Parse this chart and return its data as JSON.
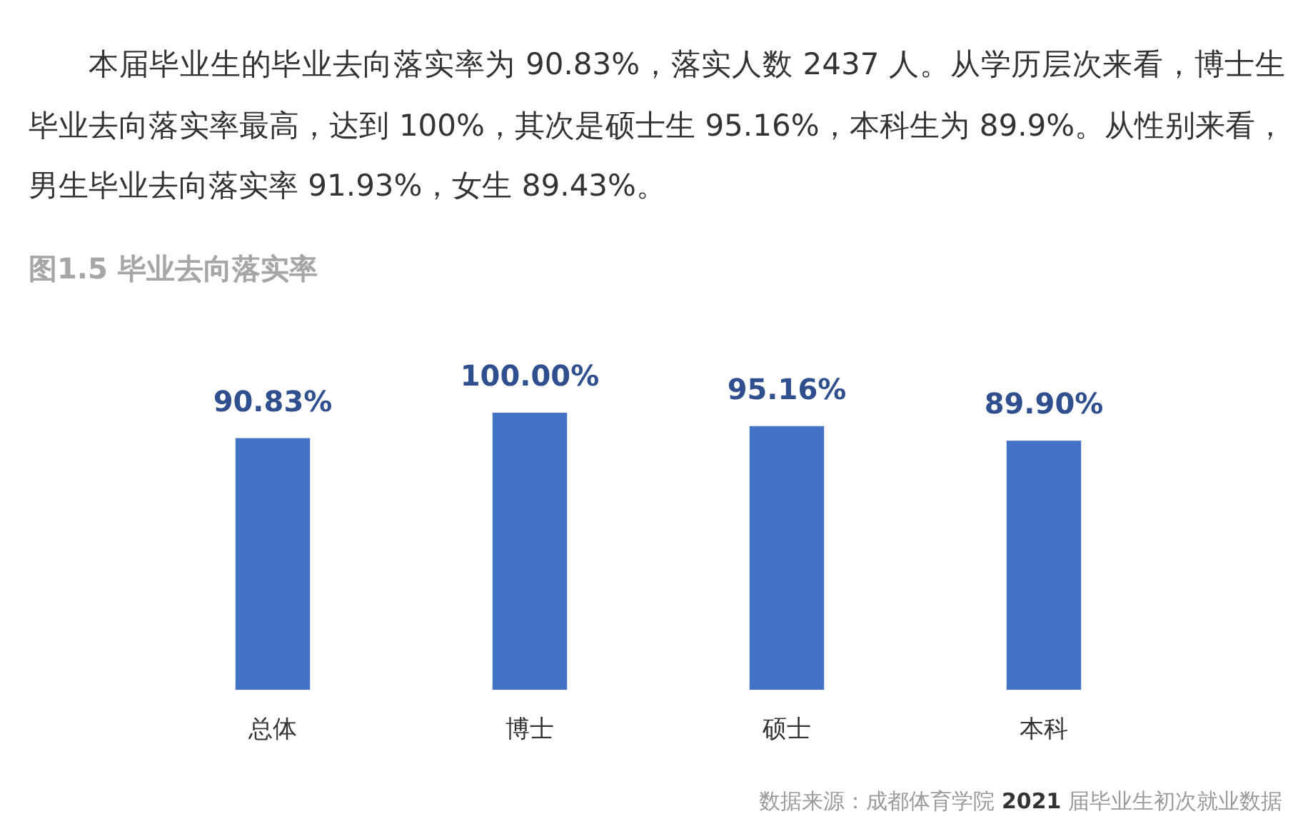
{
  "chart_data": {
    "type": "bar",
    "title": "图1.5 毕业去向落实率",
    "categories": [
      "总体",
      "博士",
      "硕士",
      "本科"
    ],
    "values": [
      90.83,
      100,
      95.16,
      89.9
    ],
    "value_labels": [
      "90.83%",
      "100.00%",
      "95.16%",
      "89.90%"
    ],
    "color": "#4472c4",
    "annotations": [
      "本届毕业生的毕业去向落实率为 90.83%，落实人数 2437 人。从学历层次来看，博士生毕业去向落实率最高，达到 100%，其次是硕士生 95.16%，本科生为 89.9%。从性别来看，男生毕业去向落实率 91.93%，女生 89.43%。",
      "数据来源：成都体育学院 2021 届毕业生初次就业数据"
    ]
  }
}
